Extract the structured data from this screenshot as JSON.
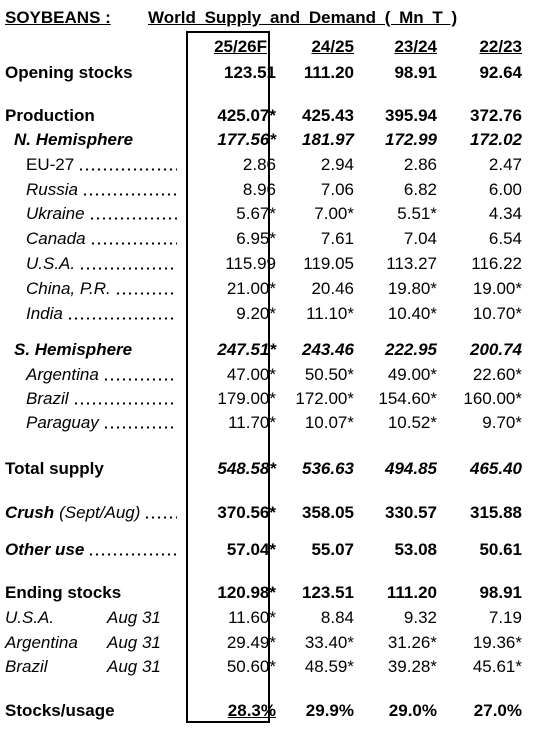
{
  "title": {
    "commodity": "SOYBEANS :",
    "subtitle": "World Supply and Demand ( Mn T )"
  },
  "table": {
    "columns": [
      "25/26F",
      "24/25",
      "23/24",
      "22/23"
    ],
    "rows": [
      {
        "label": "Opening stocks",
        "values": [
          "123.51",
          "111.20",
          "98.91",
          "92.64"
        ]
      },
      {
        "label": "Production",
        "values": [
          "425.07*",
          "425.43",
          "395.94",
          "372.76"
        ]
      },
      {
        "label": "N. Hemisphere",
        "values": [
          "177.56*",
          "181.97",
          "172.99",
          "172.02"
        ]
      },
      {
        "label": "EU-27",
        "values": [
          "2.86",
          "2.94",
          "2.86",
          "2.47"
        ]
      },
      {
        "label": "Russia",
        "values": [
          "8.96",
          "7.06",
          "6.82",
          "6.00"
        ]
      },
      {
        "label": "Ukraine",
        "values": [
          "5.67*",
          "7.00*",
          "5.51*",
          "4.34"
        ]
      },
      {
        "label": "Canada",
        "values": [
          "6.95*",
          "7.61",
          "7.04",
          "6.54"
        ]
      },
      {
        "label": "U.S.A.",
        "values": [
          "115.99",
          "119.05",
          "113.27",
          "116.22"
        ]
      },
      {
        "label": "China, P.R.",
        "values": [
          "21.00*",
          "20.46",
          "19.80*",
          "19.00*"
        ]
      },
      {
        "label": "India",
        "values": [
          "9.20*",
          "11.10*",
          "10.40*",
          "10.70*"
        ]
      },
      {
        "label": "S. Hemisphere",
        "values": [
          "247.51*",
          "243.46",
          "222.95",
          "200.74"
        ]
      },
      {
        "label": "Argentina",
        "values": [
          "47.00*",
          "50.50*",
          "49.00*",
          "22.60*"
        ]
      },
      {
        "label": "Brazil",
        "values": [
          "179.00*",
          "172.00*",
          "154.60*",
          "160.00*"
        ]
      },
      {
        "label": "Paraguay",
        "values": [
          "11.70*",
          "10.07*",
          "10.52*",
          "9.70*"
        ]
      },
      {
        "label": "Total supply",
        "values": [
          "548.58*",
          "536.63",
          "494.85",
          "465.40"
        ]
      },
      {
        "label": "Crush",
        "note": "(Sept/Aug)",
        "values": [
          "370.56*",
          "358.05",
          "330.57",
          "315.88"
        ]
      },
      {
        "label": "Other use",
        "values": [
          "57.04*",
          "55.07",
          "53.08",
          "50.61"
        ]
      },
      {
        "label": "Ending stocks",
        "values": [
          "120.98*",
          "123.51",
          "111.20",
          "98.91"
        ]
      },
      {
        "label": "U.S.A.",
        "note": "Aug 31",
        "values": [
          "11.60*",
          "8.84",
          "9.32",
          "7.19"
        ]
      },
      {
        "label": "Argentina",
        "note": "Aug 31",
        "values": [
          "29.49*",
          "33.40*",
          "31.26*",
          "19.36*"
        ]
      },
      {
        "label": "Brazil",
        "note": "Aug 31",
        "values": [
          "50.60*",
          "48.59*",
          "39.28*",
          "45.61*"
        ]
      },
      {
        "label": "Stocks/usage",
        "values": [
          "28.3%",
          "29.9%",
          "29.0%",
          "27.0%"
        ]
      }
    ]
  }
}
